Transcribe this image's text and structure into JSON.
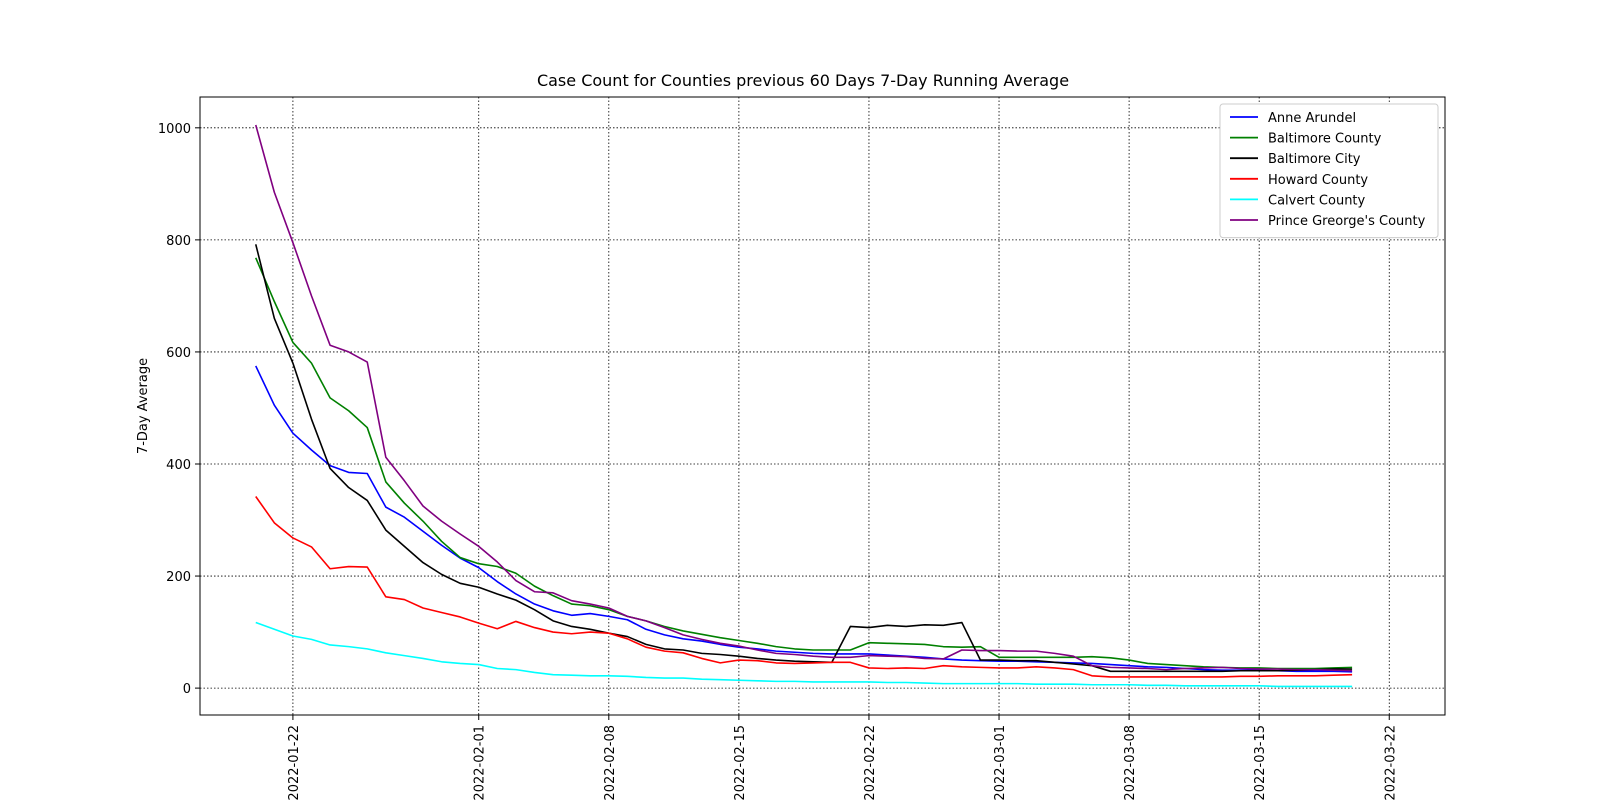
{
  "chart_data": {
    "type": "line",
    "title": "Case Count for Counties previous 60 Days 7-Day Running Average",
    "xlabel": "",
    "ylabel": "7-Day Average",
    "x_start": "2022-01-20",
    "x_end": "2022-03-20",
    "xlim": [
      "2022-01-17",
      "2022-03-25"
    ],
    "ylim": [
      -48,
      1055
    ],
    "x_ticks": [
      "2022-01-22",
      "2022-02-01",
      "2022-02-08",
      "2022-02-15",
      "2022-02-22",
      "2022-03-01",
      "2022-03-08",
      "2022-03-15",
      "2022-03-22"
    ],
    "y_ticks": [
      0,
      200,
      400,
      600,
      800,
      1000
    ],
    "grid": true,
    "legend_position": "top-right",
    "series": [
      {
        "name": "Anne Arundel",
        "color": "#0000ff",
        "values": [
          575,
          505,
          455,
          425,
          397,
          385,
          383,
          323,
          305,
          280,
          255,
          232,
          215,
          190,
          168,
          150,
          138,
          130,
          133,
          128,
          122,
          105,
          95,
          88,
          84,
          78,
          73,
          70,
          66,
          64,
          62,
          61,
          61,
          61,
          59,
          57,
          55,
          52,
          50,
          49,
          48,
          48,
          47,
          46,
          45,
          44,
          42,
          40,
          38,
          37,
          35,
          33,
          32,
          32,
          32,
          31,
          30,
          30,
          30,
          29
        ]
      },
      {
        "name": "Baltimore County",
        "color": "#008000",
        "values": [
          768,
          690,
          617,
          580,
          518,
          495,
          465,
          368,
          330,
          298,
          262,
          233,
          222,
          217,
          205,
          182,
          165,
          150,
          147,
          140,
          128,
          120,
          110,
          102,
          96,
          90,
          85,
          80,
          74,
          70,
          68,
          68,
          68,
          81,
          80,
          79,
          78,
          74,
          73,
          74,
          55,
          55,
          55,
          55,
          55,
          56,
          54,
          50,
          44,
          42,
          40,
          38,
          37,
          36,
          36,
          35,
          35,
          35,
          36,
          37
        ]
      },
      {
        "name": "Baltimore City",
        "color": "#000000",
        "values": [
          792,
          660,
          580,
          480,
          392,
          358,
          335,
          282,
          253,
          224,
          203,
          187,
          180,
          168,
          157,
          140,
          120,
          110,
          105,
          98,
          92,
          78,
          70,
          68,
          62,
          60,
          57,
          53,
          50,
          48,
          47,
          46,
          110,
          108,
          112,
          110,
          113,
          112,
          117,
          50,
          50,
          49,
          49,
          46,
          43,
          40,
          30,
          30,
          30,
          30,
          30,
          30,
          30,
          31,
          31,
          31,
          32,
          33,
          34,
          34
        ]
      },
      {
        "name": "Howard County",
        "color": "#ff0000",
        "values": [
          342,
          295,
          268,
          252,
          213,
          217,
          216,
          163,
          158,
          143,
          135,
          127,
          116,
          106,
          119,
          108,
          100,
          97,
          100,
          98,
          88,
          73,
          66,
          63,
          53,
          45,
          50,
          49,
          45,
          44,
          45,
          46,
          46,
          36,
          35,
          36,
          35,
          40,
          38,
          37,
          36,
          36,
          38,
          36,
          33,
          22,
          20,
          20,
          20,
          20,
          20,
          20,
          20,
          21,
          21,
          22,
          22,
          22,
          23,
          24
        ]
      },
      {
        "name": "Calvert County",
        "color": "#00ffff",
        "values": [
          117,
          105,
          93,
          87,
          77,
          74,
          70,
          63,
          58,
          53,
          47,
          44,
          42,
          35,
          33,
          28,
          24,
          23,
          22,
          22,
          21,
          19,
          18,
          18,
          16,
          15,
          14,
          13,
          12,
          12,
          11,
          11,
          11,
          11,
          10,
          10,
          9,
          8,
          8,
          8,
          8,
          8,
          7,
          7,
          7,
          6,
          6,
          6,
          5,
          5,
          4,
          4,
          4,
          4,
          4,
          3,
          3,
          3,
          3,
          3
        ]
      },
      {
        "name": "Prince Greorge's County",
        "color": "#800080",
        "values": [
          1005,
          885,
          795,
          700,
          612,
          600,
          582,
          412,
          370,
          325,
          298,
          275,
          253,
          225,
          192,
          172,
          170,
          156,
          150,
          143,
          128,
          120,
          108,
          95,
          87,
          80,
          75,
          68,
          62,
          60,
          57,
          55,
          55,
          58,
          57,
          56,
          53,
          52,
          68,
          67,
          67,
          66,
          66,
          62,
          57,
          40,
          37,
          36,
          35,
          33,
          35,
          36,
          37,
          35,
          34,
          34,
          33,
          33,
          32,
          31
        ]
      }
    ]
  }
}
